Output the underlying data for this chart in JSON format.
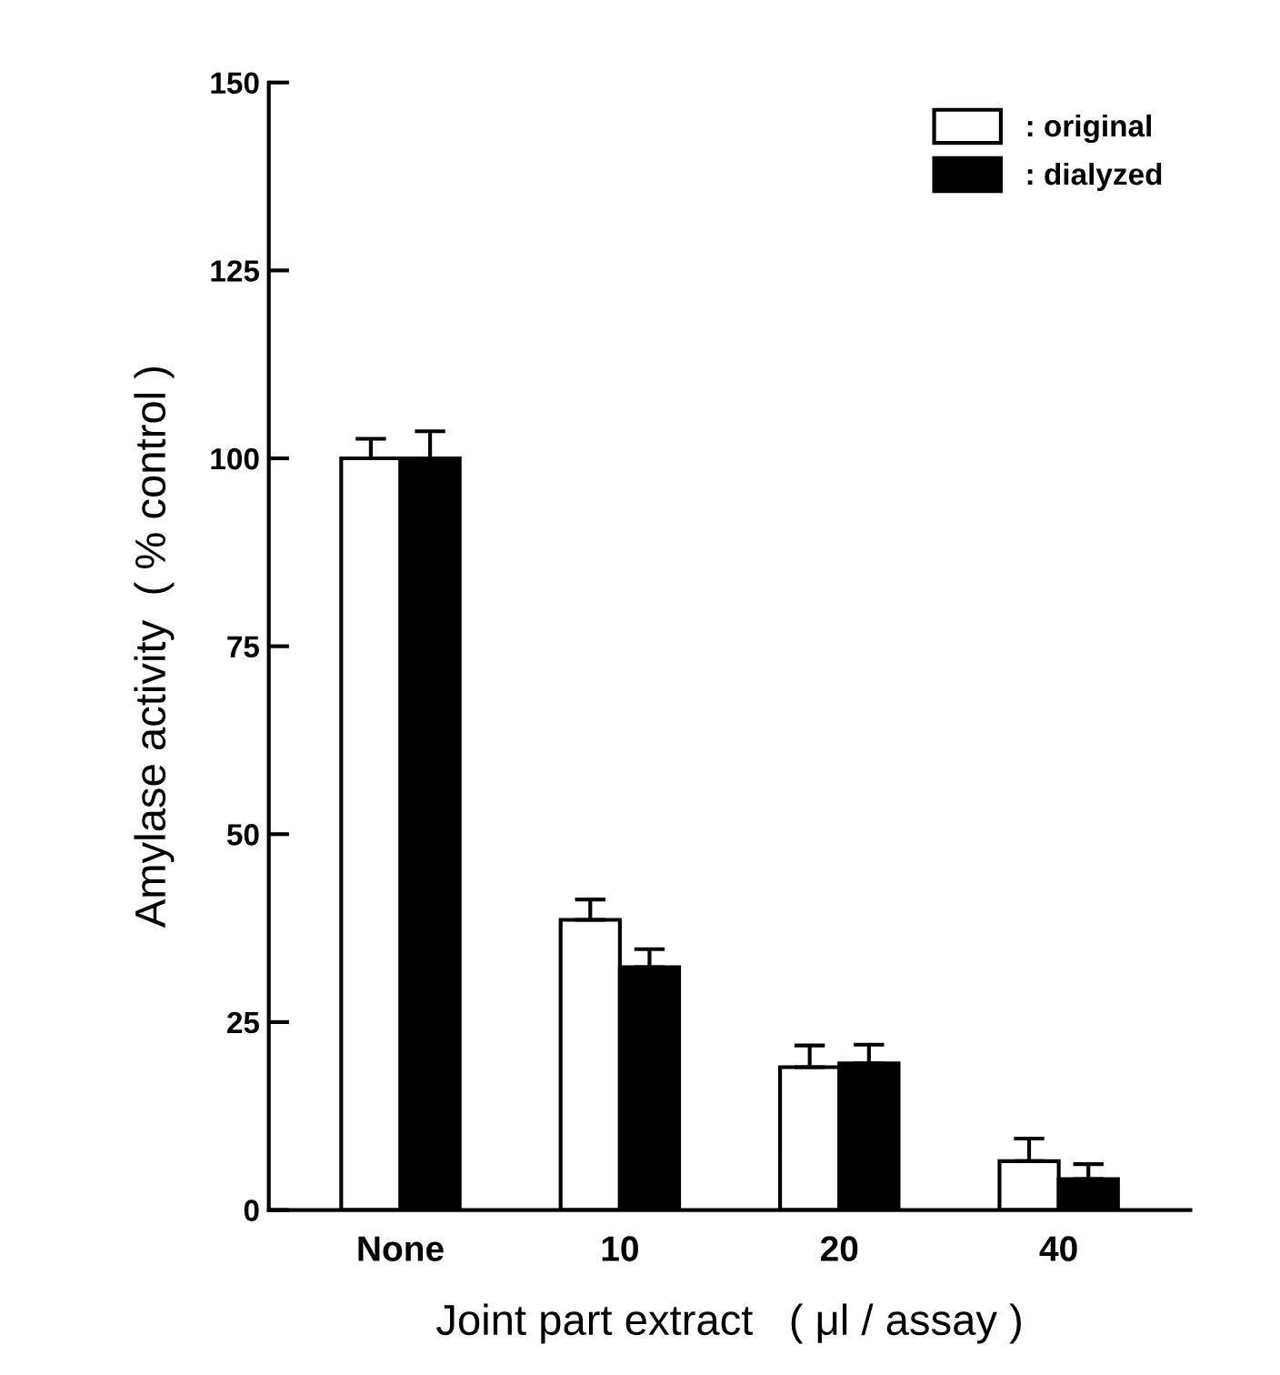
{
  "chart_data": {
    "type": "bar",
    "xlabel": "Joint part extract   ( μl / assay )",
    "ylabel": "Amylase activity  ( % control )",
    "categories": [
      "None",
      "10",
      "20",
      "40"
    ],
    "series": [
      {
        "name": ": original",
        "color": "#ffffff",
        "values": [
          100,
          38.6,
          19,
          6.5
        ],
        "errors": [
          2.6,
          2.7,
          2.9,
          3
        ]
      },
      {
        "name": ": dialyzed",
        "color": "#000000",
        "values": [
          100,
          32.3,
          19.5,
          4.1
        ],
        "errors": [
          3.6,
          2.4,
          2.5,
          2
        ]
      }
    ],
    "ylim": [
      0,
      150
    ],
    "yticks": [
      0,
      25,
      50,
      75,
      100,
      125,
      150
    ],
    "grid": false,
    "legend": "top right"
  }
}
